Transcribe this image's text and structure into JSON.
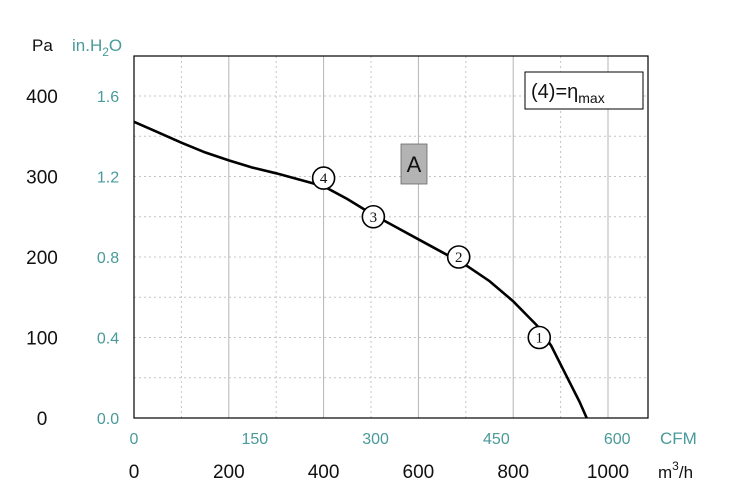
{
  "colors": {
    "teal": "#4a9a9a",
    "curve": "#000000",
    "grid": "#bbbbbb",
    "box_fill": "#b3b3b3"
  },
  "chart_data": {
    "type": "line",
    "title": "",
    "legend": {
      "text": "(4)=η",
      "subscript": "max",
      "position": "top-right"
    },
    "curve_label": "A",
    "grid": true,
    "axes": {
      "y_left": {
        "unit": "Pa",
        "range": [
          0,
          400
        ],
        "ticks": [
          "0",
          "100",
          "200",
          "300",
          "400"
        ]
      },
      "y_left2": {
        "unit_main": "in.H",
        "unit_sub": "2",
        "unit_end": "O",
        "range": [
          0,
          1.6
        ],
        "ticks": [
          "0.0",
          "0.4",
          "0.8",
          "1.2",
          "1.6"
        ]
      },
      "x_top": {
        "unit": "CFM",
        "range": [
          0,
          600
        ],
        "ticks": [
          "0",
          "150",
          "300",
          "450",
          "600"
        ]
      },
      "x_bottom": {
        "unit_main": "m",
        "unit_sup": "3",
        "unit_end": "/h",
        "range": [
          0,
          1000
        ],
        "ticks": [
          "0",
          "200",
          "400",
          "600",
          "800",
          "1000"
        ]
      }
    },
    "series": [
      {
        "x": [
          0,
          50,
          100,
          150,
          200,
          250,
          300,
          350,
          400,
          450,
          500,
          550,
          600,
          650,
          700,
          750,
          800,
          850,
          880,
          910,
          940,
          955
        ],
        "y": [
          368,
          355,
          342,
          330,
          320,
          311,
          304,
          296,
          288,
          272,
          254,
          238,
          222,
          206,
          190,
          170,
          145,
          115,
          90,
          55,
          20,
          0
        ]
      }
    ],
    "points": [
      {
        "label": "1",
        "x": 855,
        "y": 100
      },
      {
        "label": "2",
        "x": 685,
        "y": 200
      },
      {
        "label": "3",
        "x": 505,
        "y": 250
      },
      {
        "label": "4",
        "x": 400,
        "y": 298
      }
    ]
  }
}
